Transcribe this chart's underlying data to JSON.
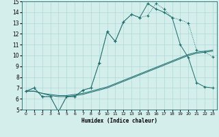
{
  "xlabel": "Humidex (Indice chaleur)",
  "xlim": [
    -0.5,
    23.5
  ],
  "ylim": [
    5,
    15
  ],
  "xticks": [
    0,
    1,
    2,
    3,
    4,
    5,
    6,
    7,
    8,
    9,
    10,
    11,
    12,
    13,
    14,
    15,
    16,
    17,
    18,
    19,
    20,
    21,
    22,
    23
  ],
  "yticks": [
    5,
    6,
    7,
    8,
    9,
    10,
    11,
    12,
    13,
    14,
    15
  ],
  "bg_color": "#d4eeec",
  "grid_color": "#afd8d5",
  "line_color": "#1a6b6a",
  "s1_x": [
    0,
    1,
    2,
    3,
    4,
    5,
    6,
    7,
    8,
    9,
    10,
    11,
    12,
    13,
    14,
    15,
    16,
    17,
    18,
    19,
    20,
    21,
    22,
    23
  ],
  "s1_y": [
    6.7,
    7.0,
    6.2,
    6.2,
    4.8,
    6.2,
    6.2,
    6.8,
    7.0,
    9.3,
    12.2,
    11.3,
    13.1,
    13.8,
    13.5,
    13.7,
    14.8,
    14.3,
    13.5,
    13.3,
    13.0,
    10.5,
    10.3,
    9.9
  ],
  "s2_x": [
    0,
    1,
    2,
    3,
    4,
    5,
    6,
    7,
    8,
    9,
    10,
    11,
    12,
    13,
    14,
    15,
    16,
    17,
    18,
    19,
    20,
    21,
    22,
    23
  ],
  "s2_y": [
    6.7,
    7.0,
    6.2,
    6.2,
    4.8,
    6.2,
    6.2,
    6.8,
    7.0,
    9.3,
    12.2,
    11.3,
    13.1,
    13.8,
    13.5,
    14.8,
    14.3,
    14.0,
    13.5,
    11.0,
    9.8,
    7.5,
    7.1,
    7.0
  ],
  "s3_x": [
    0,
    1,
    2,
    3,
    4,
    5,
    6,
    7,
    8,
    9,
    10,
    11,
    12,
    13,
    14,
    15,
    16,
    17,
    18,
    19,
    20,
    21,
    22,
    23
  ],
  "s3_y": [
    6.7,
    6.7,
    6.5,
    6.4,
    6.3,
    6.3,
    6.4,
    6.5,
    6.7,
    6.9,
    7.1,
    7.4,
    7.7,
    8.0,
    8.3,
    8.6,
    8.9,
    9.2,
    9.5,
    9.8,
    10.1,
    10.3,
    10.4,
    10.5
  ],
  "s4_x": [
    0,
    1,
    2,
    3,
    4,
    5,
    6,
    7,
    8,
    9,
    10,
    11,
    12,
    13,
    14,
    15,
    16,
    17,
    18,
    19,
    20,
    21,
    22,
    23
  ],
  "s4_y": [
    6.7,
    6.7,
    6.5,
    6.3,
    6.2,
    6.2,
    6.3,
    6.4,
    6.6,
    6.8,
    7.0,
    7.3,
    7.6,
    7.9,
    8.2,
    8.5,
    8.8,
    9.1,
    9.4,
    9.7,
    10.0,
    10.2,
    10.3,
    10.4
  ]
}
